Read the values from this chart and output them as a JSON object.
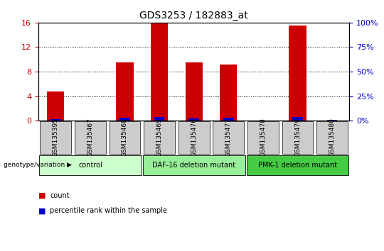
{
  "title": "GDS3253 / 182883_at",
  "samples": [
    "GSM135395",
    "GSM135467",
    "GSM135468",
    "GSM135469",
    "GSM135476",
    "GSM135477",
    "GSM135478",
    "GSM135479",
    "GSM135480"
  ],
  "count_values": [
    4.8,
    0,
    9.5,
    16.0,
    9.5,
    9.2,
    0,
    15.5,
    0
  ],
  "percentile_values": [
    1.2,
    0,
    3.2,
    3.8,
    2.0,
    3.2,
    0,
    3.5,
    0.8
  ],
  "groups": [
    {
      "label": "control",
      "start": 0,
      "end": 3,
      "color": "#ccffcc"
    },
    {
      "label": "DAF-16 deletion mutant",
      "start": 3,
      "end": 6,
      "color": "#99ee99"
    },
    {
      "label": "PMK-1 deletion mutant",
      "start": 6,
      "end": 9,
      "color": "#44cc44"
    }
  ],
  "ylim_left": [
    0,
    16
  ],
  "ylim_right": [
    0,
    100
  ],
  "yticks_left": [
    0,
    4,
    8,
    12,
    16
  ],
  "yticks_right": [
    0,
    25,
    50,
    75,
    100
  ],
  "bar_color_red": "#cc0000",
  "bar_color_blue": "#0000cc",
  "bar_width": 0.5,
  "bg_color": "#ffffff",
  "tick_label_color_left": "#cc0000",
  "tick_label_color_right": "#0000cc",
  "sample_bg_color": "#cccccc",
  "legend_items": [
    "count",
    "percentile rank within the sample"
  ],
  "legend_colors": [
    "#cc0000",
    "#0000cc"
  ]
}
